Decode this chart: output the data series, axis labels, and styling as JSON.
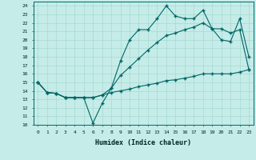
{
  "xlabel": "Humidex (Indice chaleur)",
  "xlim": [
    -0.5,
    23.5
  ],
  "ylim": [
    10,
    24.5
  ],
  "yticks": [
    10,
    11,
    12,
    13,
    14,
    15,
    16,
    17,
    18,
    19,
    20,
    21,
    22,
    23,
    24
  ],
  "xticks": [
    0,
    1,
    2,
    3,
    4,
    5,
    6,
    7,
    8,
    9,
    10,
    11,
    12,
    13,
    14,
    15,
    16,
    17,
    18,
    19,
    20,
    21,
    22,
    23
  ],
  "bg_color": "#c5ece8",
  "grid_color": "#a8d8d0",
  "line_color": "#006666",
  "line1_x": [
    0,
    1,
    2,
    3,
    4,
    5,
    6,
    7,
    8,
    9,
    10,
    11,
    12,
    13,
    14,
    15,
    16,
    17,
    18,
    19,
    20,
    21,
    22,
    23
  ],
  "line1_y": [
    15,
    13.8,
    13.7,
    13.2,
    13.2,
    13.2,
    10.2,
    12.5,
    14.3,
    17.5,
    20.0,
    21.2,
    21.2,
    22.5,
    24.0,
    22.8,
    22.5,
    22.5,
    23.5,
    21.3,
    20.0,
    19.8,
    22.5,
    18.0
  ],
  "line2_x": [
    0,
    1,
    2,
    3,
    4,
    5,
    6,
    7,
    8,
    9,
    10,
    11,
    12,
    13,
    14,
    15,
    16,
    17,
    18,
    19,
    20,
    21,
    22,
    23
  ],
  "line2_y": [
    15,
    13.8,
    13.7,
    13.2,
    13.2,
    13.2,
    13.2,
    13.5,
    14.3,
    15.8,
    16.8,
    17.8,
    18.8,
    19.7,
    20.5,
    20.8,
    21.2,
    21.5,
    22.0,
    21.3,
    21.3,
    20.8,
    21.2,
    16.5
  ],
  "line3_x": [
    0,
    1,
    2,
    3,
    4,
    5,
    6,
    7,
    8,
    9,
    10,
    11,
    12,
    13,
    14,
    15,
    16,
    17,
    18,
    19,
    20,
    21,
    22,
    23
  ],
  "line3_y": [
    15,
    13.8,
    13.7,
    13.2,
    13.2,
    13.2,
    13.2,
    13.5,
    13.8,
    14.0,
    14.2,
    14.5,
    14.7,
    14.9,
    15.2,
    15.3,
    15.5,
    15.7,
    16.0,
    16.0,
    16.0,
    16.0,
    16.2,
    16.5
  ]
}
